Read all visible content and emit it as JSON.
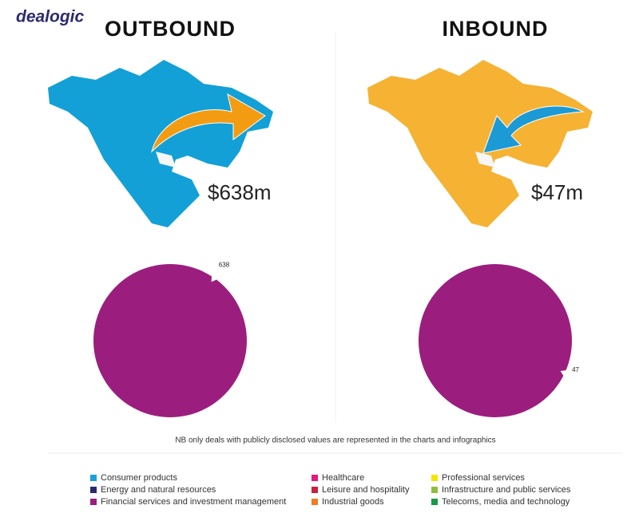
{
  "logo": "dealogic",
  "panels": [
    {
      "heading": "OUTBOUND",
      "amount": "$638m"
    },
    {
      "heading": "INBOUND",
      "amount": "$47m"
    }
  ],
  "chart_data": [
    {
      "type": "pie",
      "categories": [
        "Financial services and investment management"
      ],
      "values": [
        638
      ],
      "color": "#9b1e7e"
    },
    {
      "type": "pie",
      "categories": [
        "Financial services and investment management"
      ],
      "values": [
        47
      ],
      "color": "#9b1e7e"
    }
  ],
  "note": "NB only deals with publicly disclosed values are represented in the charts and infographics",
  "legend": [
    {
      "label": "Consumer products",
      "color": "#1aa0d8"
    },
    {
      "label": "Energy and natural resources",
      "color": "#2b2a6e"
    },
    {
      "label": "Financial services and investment management",
      "color": "#9b1e7e"
    },
    {
      "label": "Healthcare",
      "color": "#e5197e"
    },
    {
      "label": "Leisure and hospitality",
      "color": "#c8203d"
    },
    {
      "label": "Industrial goods",
      "color": "#ef7d22"
    },
    {
      "label": "Professional services",
      "color": "#f5e400"
    },
    {
      "label": "Infrastructure and public services",
      "color": "#8dbe3f"
    },
    {
      "label": "Telecoms, media and technology",
      "color": "#1a9a48"
    }
  ]
}
